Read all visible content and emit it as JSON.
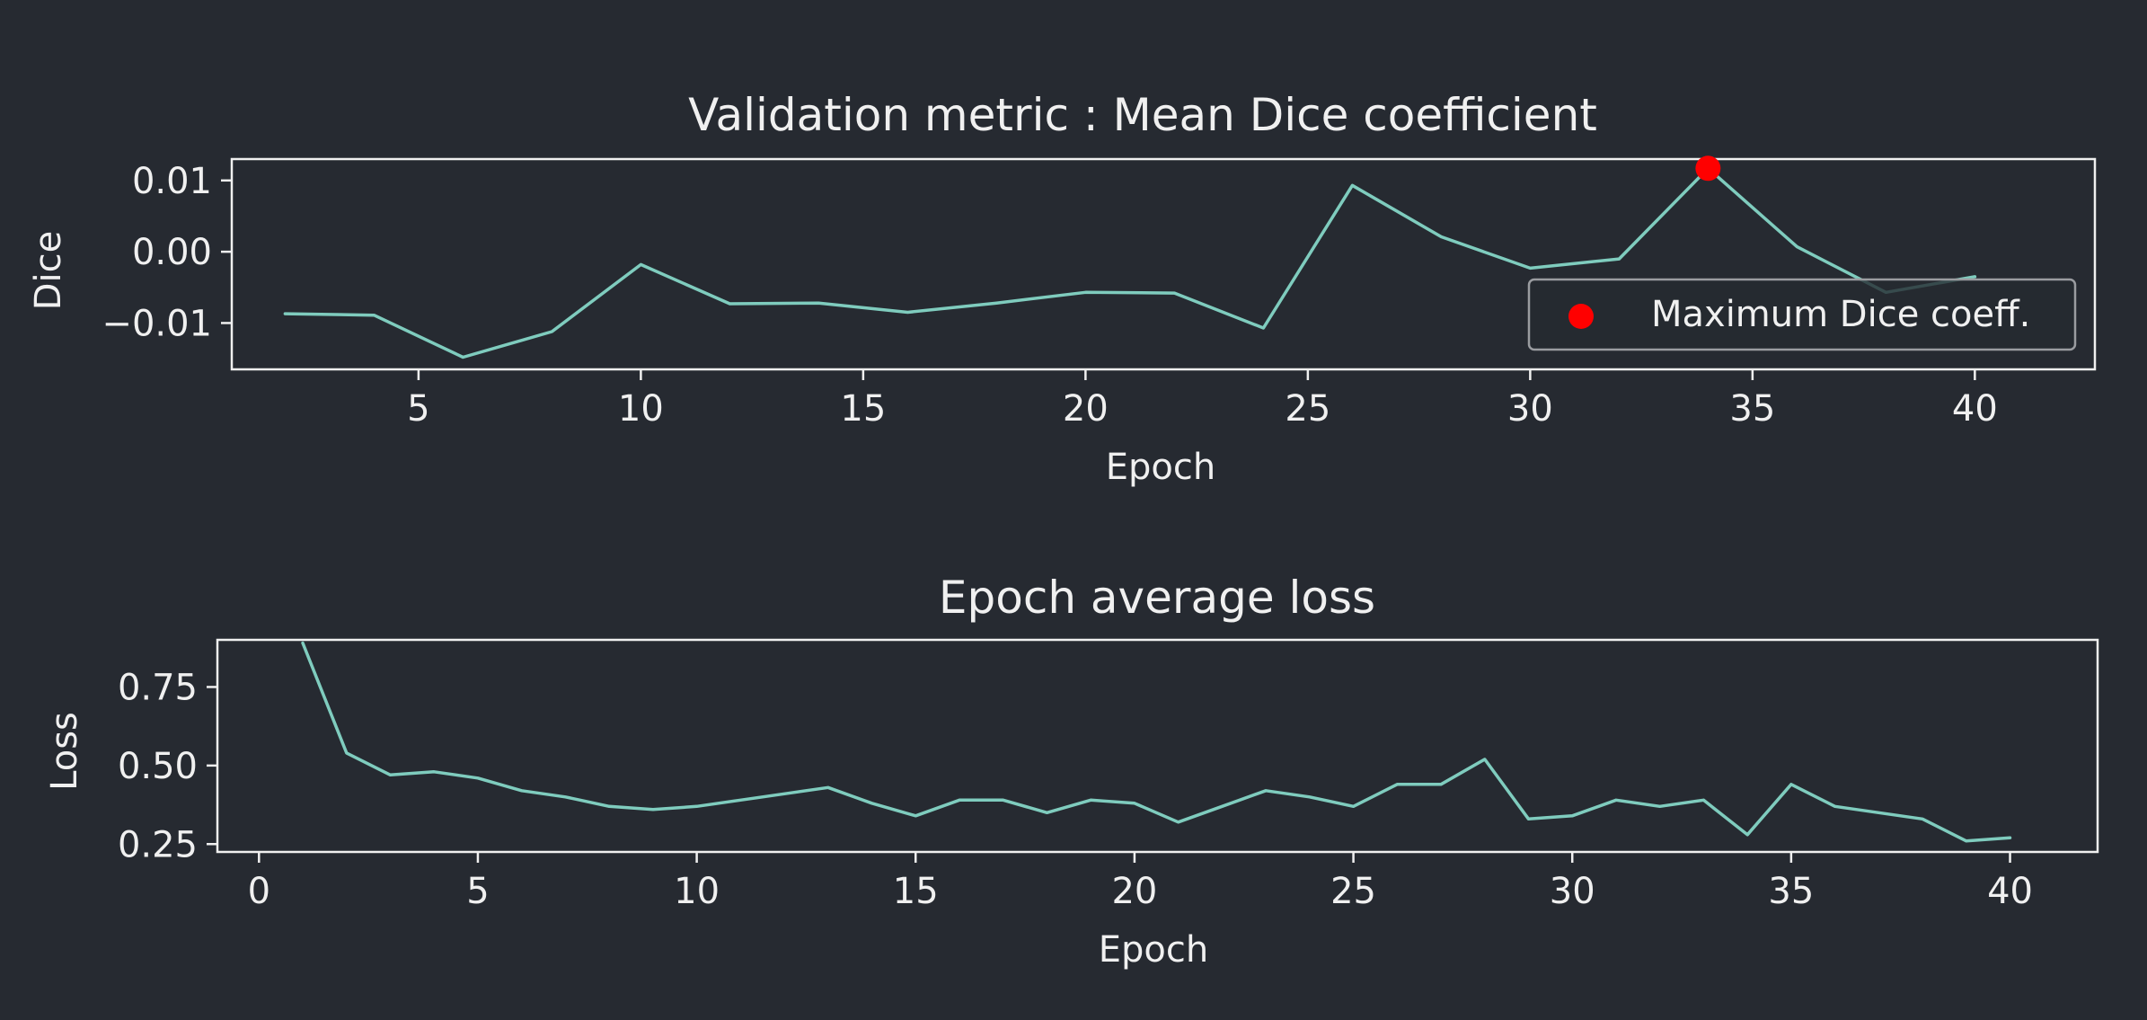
{
  "colors": {
    "background": "#262a31",
    "foreground": "#f0f0f0",
    "line": "#7fccbe",
    "max_marker": "#ff0000",
    "legend_border": "#9a9ca0"
  },
  "chart_data": [
    {
      "type": "line",
      "title": "Validation metric : Mean Dice coefficient",
      "xlabel": "Epoch",
      "ylabel": "Dice",
      "xlim": [
        0.8,
        42.7
      ],
      "ylim": [
        -0.0165,
        0.013
      ],
      "xticks": [
        5,
        10,
        15,
        20,
        25,
        30,
        35,
        40
      ],
      "xtick_labels": [
        "5",
        "10",
        "15",
        "20",
        "25",
        "30",
        "35",
        "40"
      ],
      "yticks": [
        -0.01,
        0.0,
        0.01
      ],
      "ytick_labels": [
        "−0.01",
        "0.00",
        "0.01"
      ],
      "grid": false,
      "series": [
        {
          "x": [
            2,
            4,
            6,
            8,
            10,
            12,
            14,
            16,
            18,
            20,
            22,
            24,
            26,
            28,
            30,
            32,
            34,
            36,
            38,
            40
          ],
          "y": [
            -0.0087,
            -0.0089,
            -0.0148,
            -0.0112,
            -0.0018,
            -0.0073,
            -0.0072,
            -0.0085,
            -0.0072,
            -0.0057,
            -0.0058,
            -0.0107,
            0.0093,
            0.0021,
            -0.0023,
            -0.001,
            0.0117,
            0.0007,
            -0.0057,
            -0.0035
          ]
        }
      ],
      "highlight": {
        "label": "Maximum Dice coeff.",
        "x": 34,
        "y": 0.0117
      },
      "legend": {
        "position": "lower-right",
        "entries": [
          "Maximum Dice coeff."
        ]
      }
    },
    {
      "type": "line",
      "title": "Epoch average loss",
      "xlabel": "Epoch",
      "ylabel": "Loss",
      "xlim": [
        -0.95,
        42.0
      ],
      "ylim": [
        0.225,
        0.9
      ],
      "xticks": [
        0,
        5,
        10,
        15,
        20,
        25,
        30,
        35,
        40
      ],
      "xtick_labels": [
        "0",
        "5",
        "10",
        "15",
        "20",
        "25",
        "30",
        "35",
        "40"
      ],
      "yticks": [
        0.25,
        0.5,
        0.75
      ],
      "ytick_labels": [
        "0.25",
        "0.50",
        "0.75"
      ],
      "grid": false,
      "series": [
        {
          "x": [
            1,
            2,
            3,
            4,
            5,
            6,
            7,
            8,
            9,
            10,
            11,
            12,
            13,
            14,
            15,
            16,
            17,
            18,
            19,
            20,
            21,
            22,
            23,
            24,
            25,
            26,
            27,
            28,
            29,
            30,
            31,
            32,
            33,
            34,
            35,
            36,
            37,
            38,
            39,
            40
          ],
          "y": [
            0.89,
            0.54,
            0.47,
            0.48,
            0.46,
            0.42,
            0.4,
            0.37,
            0.36,
            0.37,
            0.39,
            0.41,
            0.43,
            0.38,
            0.34,
            0.39,
            0.39,
            0.35,
            0.39,
            0.38,
            0.32,
            0.37,
            0.42,
            0.4,
            0.37,
            0.44,
            0.44,
            0.52,
            0.33,
            0.34,
            0.39,
            0.37,
            0.39,
            0.28,
            0.44,
            0.37,
            0.35,
            0.33,
            0.26,
            0.27
          ]
        }
      ]
    }
  ]
}
